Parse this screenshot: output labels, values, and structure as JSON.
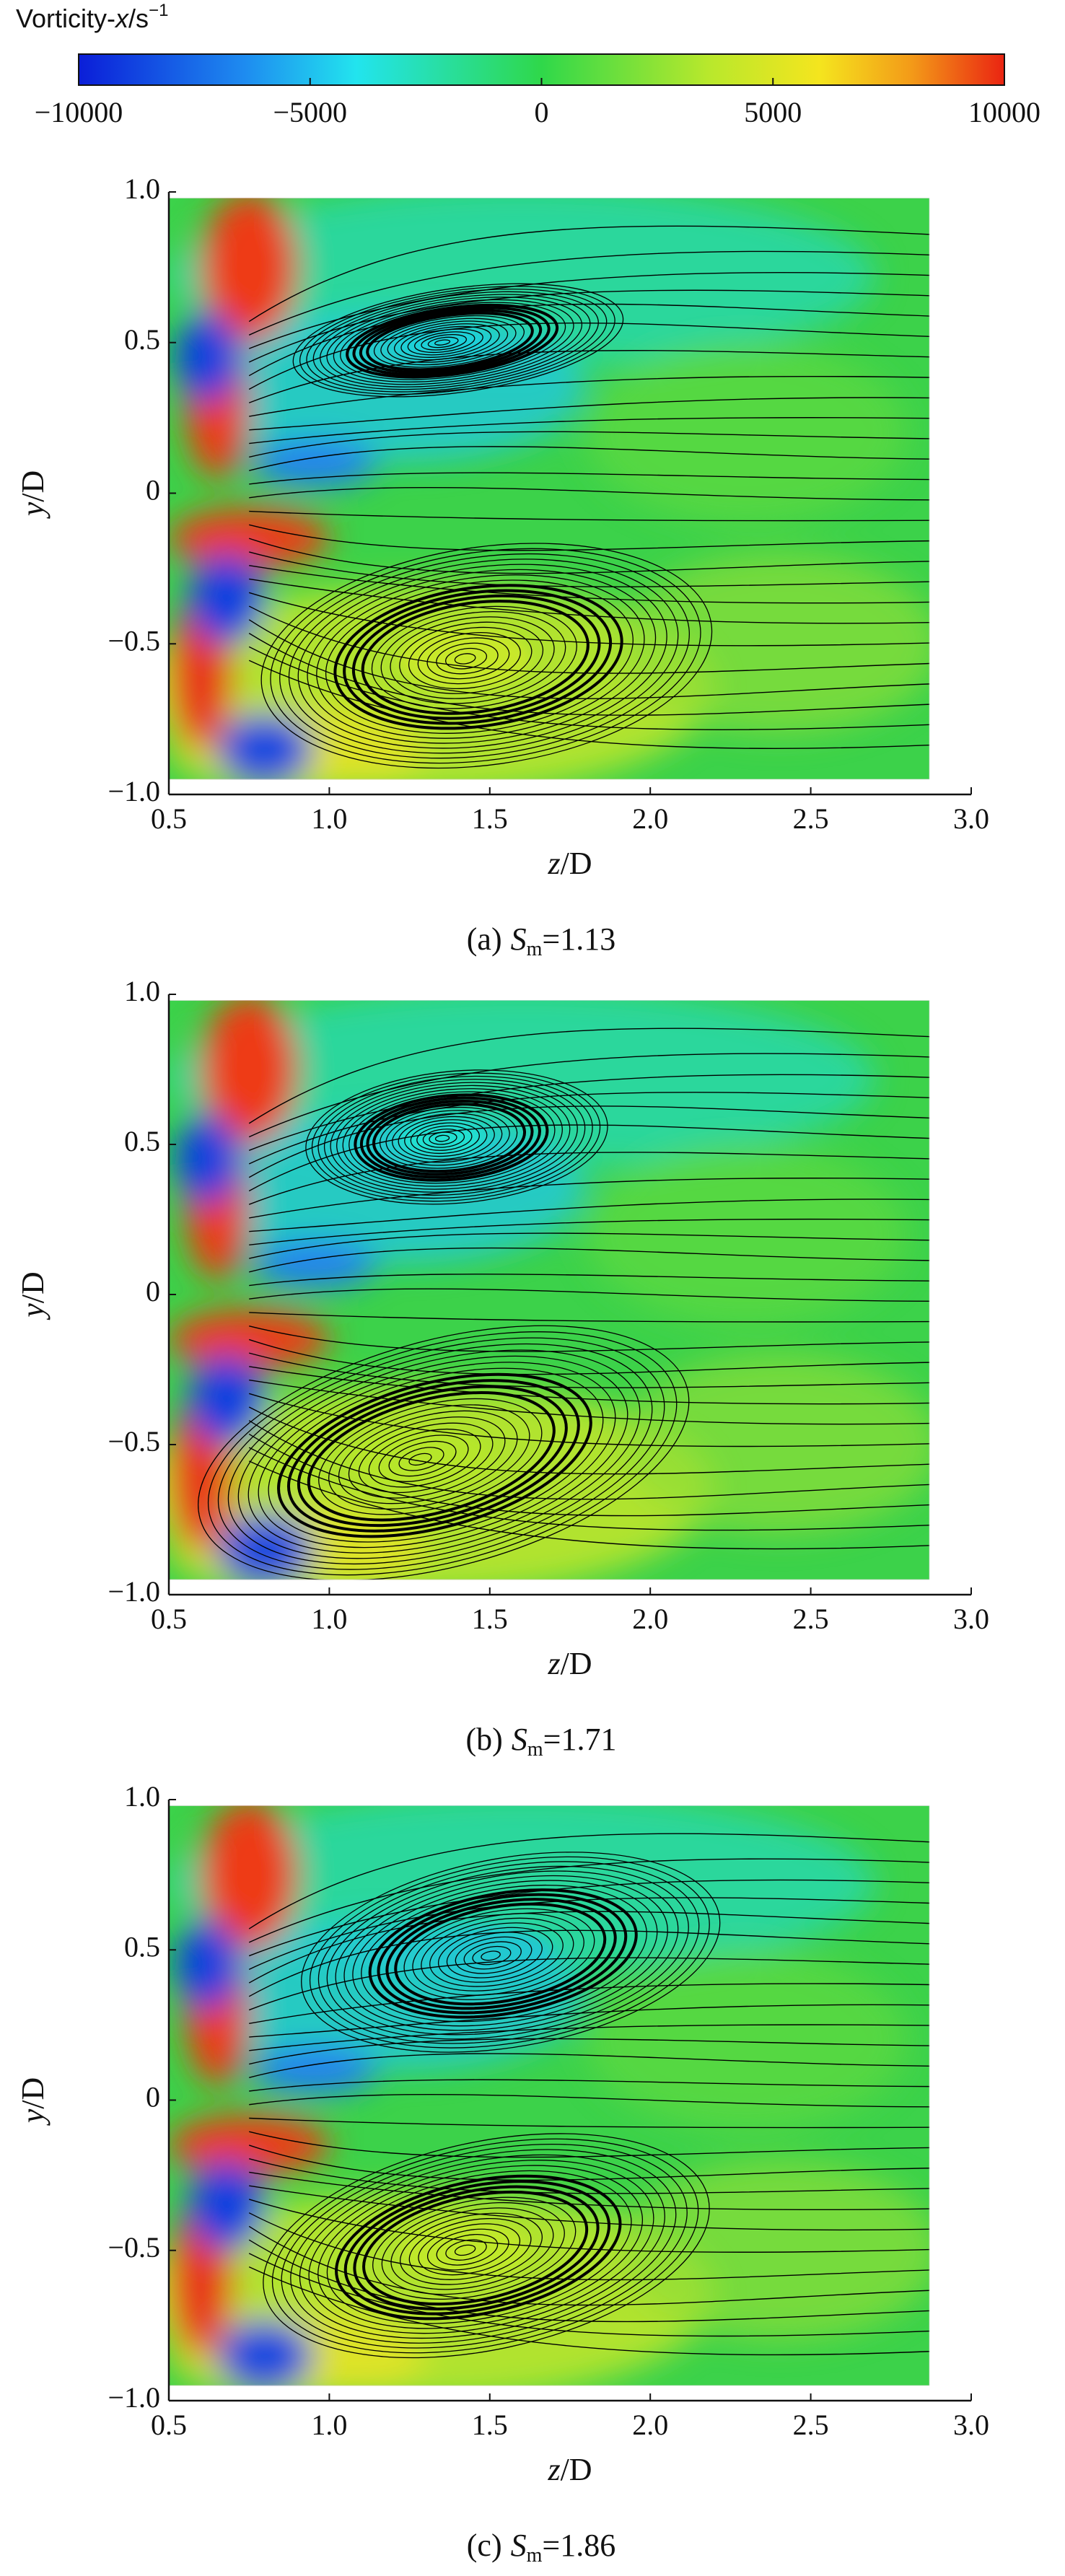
{
  "colorbar": {
    "title": [
      "Vorticity-",
      "x",
      "/s",
      "−1"
    ],
    "lim": [
      -10000,
      10000
    ],
    "ticks": [
      {
        "value": -10000,
        "label": "−10000"
      },
      {
        "value": -5000,
        "label": "−5000"
      },
      0,
      5000,
      10000
    ]
  },
  "chart_data": [
    {
      "type": "streamline-contour",
      "caption": [
        "(a)",
        "S",
        "m",
        "=1.13"
      ],
      "xlabel": [
        "z",
        "/D"
      ],
      "ylabel": [
        "y",
        "/D"
      ],
      "xlim": [
        0.5,
        3.0
      ],
      "ylim": [
        -1.0,
        1.0
      ],
      "xticks": [
        0.5,
        {
          "value": 1,
          "label": "1.0"
        },
        1.5,
        {
          "value": 2,
          "label": "2.0"
        },
        2.5,
        {
          "value": 3,
          "label": "3.0"
        }
      ],
      "yticks": [
        {
          "value": 1,
          "label": "1.0"
        },
        0.5,
        0,
        {
          "value": -0.5,
          "label": "−0.5"
        },
        {
          "value": -1,
          "label": "−1.0"
        }
      ]
    },
    {
      "type": "streamline-contour",
      "caption": [
        "(b)",
        "S",
        "m",
        "=1.71"
      ],
      "xlabel": [
        "z",
        "/D"
      ],
      "ylabel": [
        "y",
        "/D"
      ],
      "xlim": [
        0.5,
        3.0
      ],
      "ylim": [
        -1.0,
        1.0
      ],
      "xticks": [
        0.5,
        {
          "value": 1,
          "label": "1.0"
        },
        1.5,
        {
          "value": 2,
          "label": "2.0"
        },
        2.5,
        {
          "value": 3,
          "label": "3.0"
        }
      ],
      "yticks": [
        {
          "value": 1,
          "label": "1.0"
        },
        0.5,
        0,
        {
          "value": -0.5,
          "label": "−0.5"
        },
        {
          "value": -1,
          "label": "−1.0"
        }
      ]
    },
    {
      "type": "streamline-contour",
      "caption": [
        "(c)",
        "S",
        "m",
        "=1.86"
      ],
      "xlabel": [
        "z",
        "/D"
      ],
      "ylabel": [
        "y",
        "/D"
      ],
      "xlim": [
        0.5,
        3.0
      ],
      "ylim": [
        -1.0,
        1.0
      ],
      "xticks": [
        0.5,
        {
          "value": 1,
          "label": "1.0"
        },
        1.5,
        {
          "value": 2,
          "label": "2.0"
        },
        2.5,
        {
          "value": 3,
          "label": "3.0"
        }
      ],
      "yticks": [
        {
          "value": 1,
          "label": "1.0"
        },
        0.5,
        0,
        {
          "value": -0.5,
          "label": "−0.5"
        },
        {
          "value": -1,
          "label": "−1.0"
        }
      ]
    }
  ]
}
